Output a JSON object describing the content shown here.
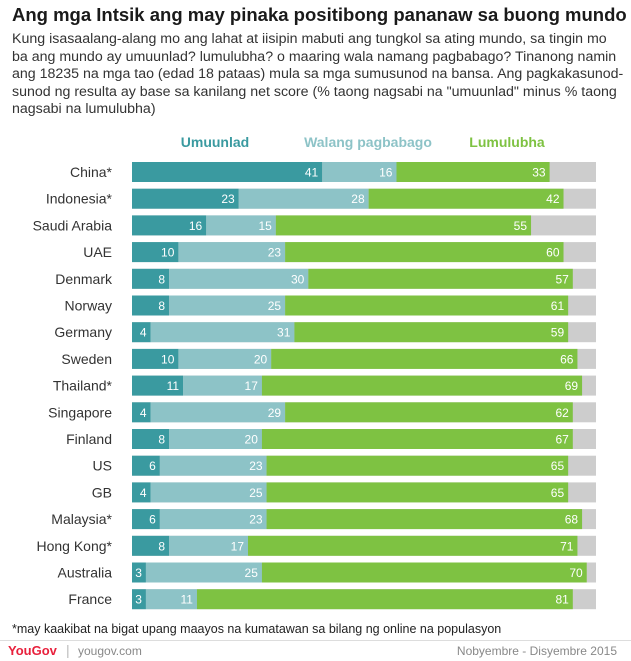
{
  "title": "Ang mga Intsik ang may pinaka positibong pananaw sa buong mundo",
  "subtitle": "Kung isasaalang-alang mo ang lahat at iisipin mabuti ang tungkol sa ating mundo, sa tingin mo ba ang mundo ay umuunlad? lumulubha? o maaring wala namang pagbabago? Tinanong namin ang 18235 na mga tao (edad 18 pataas) mula sa mga sumusunod na bansa. Ang pagkakasunod-sunod ng resulta ay base sa kanilang net score (% taong nagsabi na \"umuunlad\" minus % taong nagsabi na lumulubha)",
  "footnote": "*may kaakibat na bigat upang maayos na kumatawan sa bilang ng online na populasyon",
  "logo": "YouGov",
  "site": "yougov.com",
  "date": "Nobyembre - Disyembre 2015",
  "colors": {
    "improving": "#3a9aa0",
    "same": "#8dc3c7",
    "worse": "#7ec242",
    "remainder": "#cdcdcd"
  },
  "chart_data": {
    "type": "bar",
    "orientation": "horizontal",
    "stacked": true,
    "categories": [
      "China*",
      "Indonesia*",
      "Saudi Arabia",
      "UAE",
      "Denmark",
      "Norway",
      "Germany",
      "Sweden",
      "Thailand*",
      "Singapore",
      "Finland",
      "US",
      "GB",
      "Malaysia*",
      "Hong Kong*",
      "Australia",
      "France"
    ],
    "series": [
      {
        "name": "Umuunlad",
        "values": [
          41,
          23,
          16,
          10,
          8,
          8,
          4,
          10,
          11,
          4,
          8,
          6,
          4,
          6,
          8,
          3,
          3
        ]
      },
      {
        "name": "Walang pagbabago",
        "values": [
          16,
          28,
          15,
          23,
          30,
          25,
          31,
          20,
          17,
          29,
          20,
          23,
          25,
          23,
          17,
          25,
          11
        ]
      },
      {
        "name": "Lumulubha",
        "values": [
          33,
          42,
          55,
          60,
          57,
          61,
          59,
          66,
          69,
          62,
          67,
          65,
          65,
          68,
          71,
          70,
          81
        ]
      }
    ],
    "xlim": [
      0,
      100
    ],
    "legend": "top",
    "grid": false
  }
}
